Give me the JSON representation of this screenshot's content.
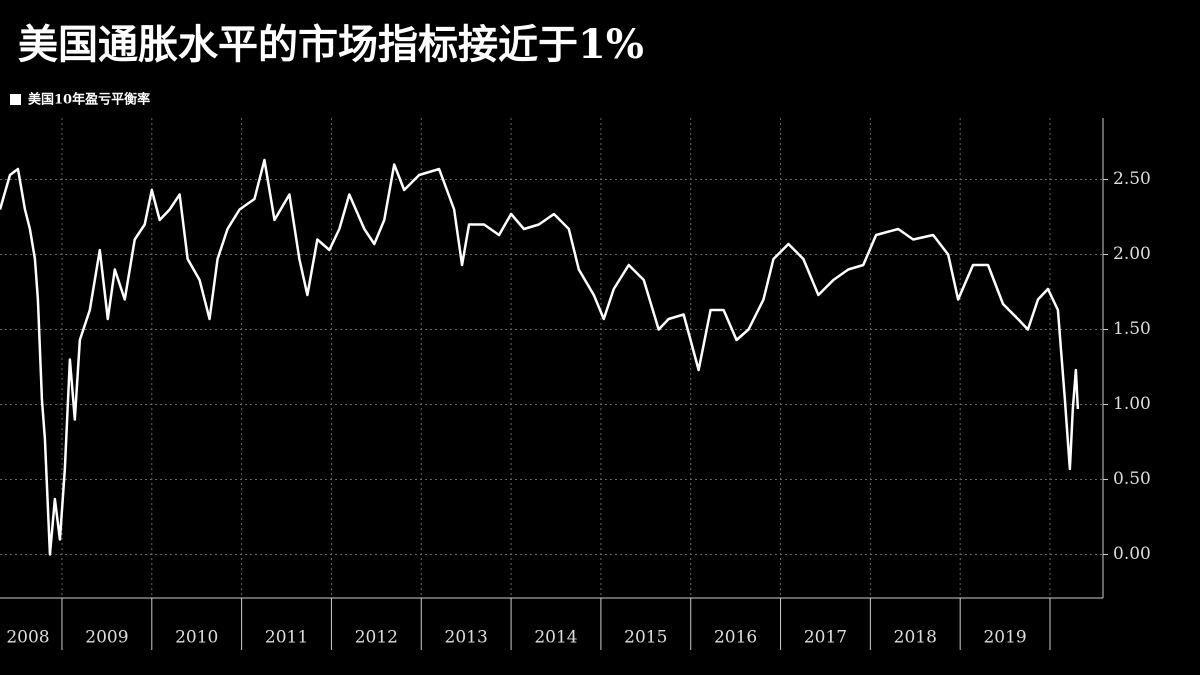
{
  "chart_data": {
    "type": "line",
    "title": "美国通胀水平的市场指标接近于1%",
    "x": [
      2008.31,
      2008.421,
      2008.51,
      2008.588,
      2008.643,
      2008.699,
      2008.732,
      2008.777,
      2008.81,
      2008.866,
      2008.921,
      2008.977,
      2009.032,
      2009.088,
      2009.143,
      2009.199,
      2009.31,
      2009.421,
      2009.51,
      2009.588,
      2009.699,
      2009.81,
      2009.921,
      2010.0,
      2010.088,
      2010.199,
      2010.31,
      2010.399,
      2010.532,
      2010.643,
      2010.732,
      2010.843,
      2010.977,
      2011.143,
      2011.254,
      2011.366,
      2011.532,
      2011.643,
      2011.732,
      2011.843,
      2011.977,
      2012.088,
      2012.199,
      2012.366,
      2012.477,
      2012.588,
      2012.699,
      2012.81,
      2012.977,
      2013.199,
      2013.366,
      2013.454,
      2013.532,
      2013.699,
      2013.866,
      2014.0,
      2014.143,
      2014.31,
      2014.477,
      2014.643,
      2014.754,
      2014.921,
      2015.032,
      2015.143,
      2015.31,
      2015.477,
      2015.643,
      2015.754,
      2015.921,
      2016.088,
      2016.221,
      2016.366,
      2016.51,
      2016.643,
      2016.81,
      2016.921,
      2017.088,
      2017.254,
      2017.421,
      2017.588,
      2017.754,
      2017.921,
      2018.064,
      2018.31,
      2018.477,
      2018.699,
      2018.866,
      2018.977,
      2019.143,
      2019.31,
      2019.477,
      2019.643,
      2019.754,
      2019.866,
      2019.977,
      2020.088,
      2020.166,
      2020.221,
      2020.254,
      2020.288,
      2020.31
    ],
    "series": [
      {
        "name": "美国10年盈亏平衡率",
        "color": "#ffffff",
        "values": [
          2.3,
          2.53,
          2.57,
          2.3,
          2.17,
          1.97,
          1.7,
          1.03,
          0.77,
          0.0,
          0.37,
          0.1,
          0.57,
          1.3,
          0.9,
          1.43,
          1.63,
          2.03,
          1.57,
          1.9,
          1.7,
          2.1,
          2.2,
          2.43,
          2.23,
          2.3,
          2.4,
          1.97,
          1.83,
          1.57,
          1.97,
          2.17,
          2.3,
          2.37,
          2.63,
          2.23,
          2.4,
          1.97,
          1.73,
          2.1,
          2.03,
          2.17,
          2.4,
          2.17,
          2.07,
          2.23,
          2.6,
          2.43,
          2.53,
          2.57,
          2.3,
          1.93,
          2.2,
          2.2,
          2.13,
          2.27,
          2.17,
          2.2,
          2.27,
          2.17,
          1.9,
          1.73,
          1.57,
          1.77,
          1.93,
          1.83,
          1.5,
          1.57,
          1.6,
          1.23,
          1.63,
          1.63,
          1.43,
          1.5,
          1.7,
          1.97,
          2.07,
          1.97,
          1.73,
          1.83,
          1.9,
          1.93,
          2.13,
          2.17,
          2.1,
          2.13,
          2.0,
          1.7,
          1.93,
          1.93,
          1.67,
          1.57,
          1.5,
          1.7,
          1.77,
          1.63,
          1.03,
          0.57,
          0.97,
          1.23,
          0.97
        ]
      }
    ],
    "xlim": [
      2008.31,
      2020.59
    ],
    "xticks": [
      {
        "value": 2008.5,
        "label": "2008"
      },
      {
        "value": 2009.5,
        "label": "2009"
      },
      {
        "value": 2010.5,
        "label": "2010"
      },
      {
        "value": 2011.5,
        "label": "2011"
      },
      {
        "value": 2012.5,
        "label": "2012"
      },
      {
        "value": 2013.5,
        "label": "2013"
      },
      {
        "value": 2014.5,
        "label": "2014"
      },
      {
        "value": 2015.5,
        "label": "2015"
      },
      {
        "value": 2016.5,
        "label": "2016"
      },
      {
        "value": 2017.5,
        "label": "2017"
      },
      {
        "value": 2018.5,
        "label": "2018"
      },
      {
        "value": 2019.5,
        "label": "2019"
      }
    ],
    "ylim": [
      -0.29,
      2.91
    ],
    "yticks": [
      {
        "value": 0,
        "label": "0.00"
      },
      {
        "value": 0.5,
        "label": "0.50"
      },
      {
        "value": 1,
        "label": "1.00"
      },
      {
        "value": 1.5,
        "label": "1.50"
      },
      {
        "value": 2,
        "label": "2.00"
      },
      {
        "value": 2.5,
        "label": "2.50"
      }
    ],
    "grid": true
  }
}
